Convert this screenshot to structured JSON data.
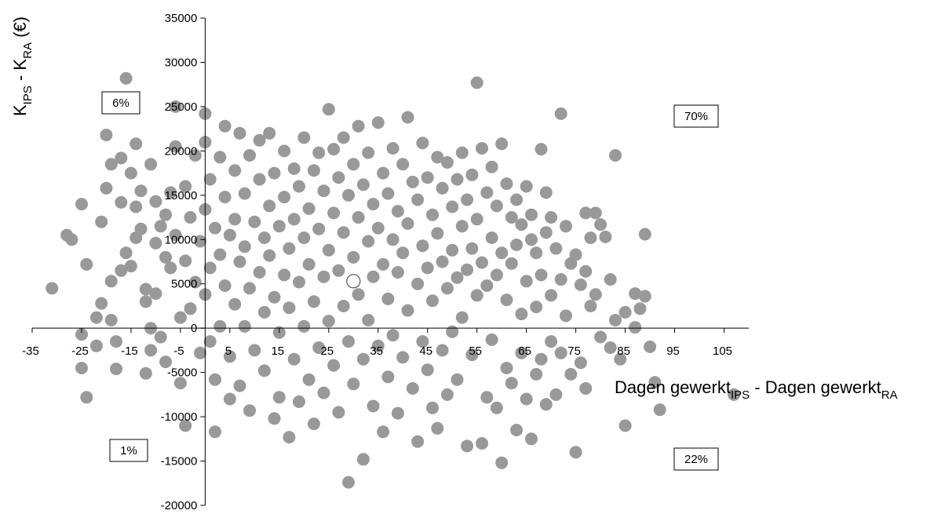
{
  "chart_data": {
    "type": "scatter",
    "title": "",
    "xlabel": {
      "base": "Dagen gewerkt",
      "sub1": "IPS",
      "mid": " - Dagen gewerkt",
      "sub2": "RA"
    },
    "ylabel": {
      "k1": "K",
      "sub1": "IPS",
      "mid": " - K",
      "sub2": "RA",
      "unit": " (€)"
    },
    "xlim": [
      -35,
      110
    ],
    "ylim": [
      -20000,
      35000
    ],
    "x_ticks": [
      -35,
      -25,
      -15,
      -5,
      5,
      15,
      25,
      35,
      45,
      55,
      65,
      75,
      85,
      95,
      105
    ],
    "y_ticks": [
      -20000,
      -15000,
      -10000,
      -5000,
      0,
      5000,
      10000,
      15000,
      20000,
      25000,
      30000,
      35000
    ],
    "quadrant_labels": [
      {
        "text": "6%",
        "quadrant": "top-left"
      },
      {
        "text": "70%",
        "quadrant": "top-right"
      },
      {
        "text": "1%",
        "quadrant": "bottom-left"
      },
      {
        "text": "22%",
        "quadrant": "bottom-right"
      }
    ],
    "point_color": "#999999",
    "mean_point": {
      "x": 30,
      "y": 5300,
      "color": "#ffffff"
    },
    "series": [
      {
        "points": [
          [
            -31,
            4500
          ],
          [
            -28,
            10500
          ],
          [
            -27,
            10000
          ],
          [
            -25,
            14000
          ],
          [
            -25,
            -700
          ],
          [
            -25,
            -4500
          ],
          [
            -24,
            7200
          ],
          [
            -24,
            -7800
          ],
          [
            -22,
            1200
          ],
          [
            -22,
            -2000
          ],
          [
            -21,
            12000
          ],
          [
            -21,
            2800
          ],
          [
            -20,
            21800
          ],
          [
            -20,
            15800
          ],
          [
            -19,
            5300
          ],
          [
            -19,
            900
          ],
          [
            -19,
            18500
          ],
          [
            -18,
            -1500
          ],
          [
            -18,
            -4600
          ],
          [
            -17,
            19200
          ],
          [
            -17,
            14200
          ],
          [
            -17,
            6500
          ],
          [
            -16,
            28200
          ],
          [
            -16,
            8500
          ],
          [
            -15,
            17500
          ],
          [
            -15,
            7000
          ],
          [
            -14,
            20800
          ],
          [
            -14,
            13700
          ],
          [
            -14,
            10200
          ],
          [
            -13,
            15500
          ],
          [
            -13,
            11200
          ],
          [
            -12,
            4400
          ],
          [
            -12,
            3000
          ],
          [
            -12,
            -5100
          ],
          [
            -11,
            0
          ],
          [
            -11,
            -2500
          ],
          [
            -11,
            18500
          ],
          [
            -10,
            14300
          ],
          [
            -10,
            9600
          ],
          [
            -10,
            3900
          ],
          [
            -9,
            11500
          ],
          [
            -9,
            -1000
          ],
          [
            -8,
            12800
          ],
          [
            -8,
            8000
          ],
          [
            -8,
            -3800
          ],
          [
            -7,
            15300
          ],
          [
            -7,
            6800
          ],
          [
            -6,
            25000
          ],
          [
            -6,
            20500
          ],
          [
            -6,
            10500
          ],
          [
            -5,
            1200
          ],
          [
            -5,
            -6200
          ],
          [
            -4,
            16000
          ],
          [
            -4,
            7600
          ],
          [
            -4,
            -11000
          ],
          [
            -3,
            12500
          ],
          [
            -3,
            2200
          ],
          [
            -2,
            19500
          ],
          [
            -2,
            5200
          ],
          [
            -1,
            9800
          ],
          [
            -1,
            -2800
          ],
          [
            0,
            24200
          ],
          [
            0,
            21000
          ],
          [
            0,
            13400
          ],
          [
            0,
            3800
          ],
          [
            1,
            16800
          ],
          [
            1,
            6800
          ],
          [
            1,
            -1500
          ],
          [
            2,
            11300
          ],
          [
            2,
            -5800
          ],
          [
            2,
            -11700
          ],
          [
            3,
            19300
          ],
          [
            3,
            8300
          ],
          [
            3,
            200
          ],
          [
            4,
            22800
          ],
          [
            4,
            14800
          ],
          [
            4,
            4800
          ],
          [
            5,
            10500
          ],
          [
            5,
            -3200
          ],
          [
            5,
            -8000
          ],
          [
            6,
            17800
          ],
          [
            6,
            12300
          ],
          [
            6,
            2700
          ],
          [
            7,
            22000
          ],
          [
            7,
            7500
          ],
          [
            7,
            -6500
          ],
          [
            8,
            15200
          ],
          [
            8,
            9200
          ],
          [
            8,
            200
          ],
          [
            9,
            19500
          ],
          [
            9,
            4500
          ],
          [
            9,
            -9300
          ],
          [
            10,
            12000
          ],
          [
            10,
            -2500
          ],
          [
            11,
            21200
          ],
          [
            11,
            16800
          ],
          [
            11,
            6300
          ],
          [
            12,
            10200
          ],
          [
            12,
            1800
          ],
          [
            12,
            -4800
          ],
          [
            13,
            22000
          ],
          [
            13,
            13800
          ],
          [
            13,
            8200
          ],
          [
            14,
            17500
          ],
          [
            14,
            3500
          ],
          [
            14,
            -10200
          ],
          [
            15,
            11500
          ],
          [
            15,
            -500
          ],
          [
            15,
            -7800
          ],
          [
            16,
            20000
          ],
          [
            16,
            14800
          ],
          [
            16,
            6000
          ],
          [
            17,
            9000
          ],
          [
            17,
            2300
          ],
          [
            17,
            -12300
          ],
          [
            18,
            18000
          ],
          [
            18,
            12300
          ],
          [
            18,
            -3500
          ],
          [
            19,
            16000
          ],
          [
            19,
            5200
          ],
          [
            19,
            -8300
          ],
          [
            20,
            21500
          ],
          [
            20,
            10200
          ],
          [
            20,
            200
          ],
          [
            21,
            13500
          ],
          [
            21,
            7200
          ],
          [
            21,
            -5800
          ],
          [
            22,
            17800
          ],
          [
            22,
            3000
          ],
          [
            22,
            -10800
          ],
          [
            23,
            19800
          ],
          [
            23,
            11200
          ],
          [
            23,
            -2200
          ],
          [
            24,
            15500
          ],
          [
            24,
            5800
          ],
          [
            24,
            -7300
          ],
          [
            25,
            24700
          ],
          [
            25,
            8800
          ],
          [
            25,
            800
          ],
          [
            26,
            20200
          ],
          [
            26,
            13000
          ],
          [
            26,
            -4200
          ],
          [
            27,
            17000
          ],
          [
            27,
            6500
          ],
          [
            27,
            -9500
          ],
          [
            28,
            21500
          ],
          [
            28,
            10800
          ],
          [
            28,
            2500
          ],
          [
            29,
            15000
          ],
          [
            29,
            -1500
          ],
          [
            29,
            -17400
          ],
          [
            30,
            18500
          ],
          [
            30,
            8000
          ],
          [
            30,
            -6300
          ],
          [
            31,
            22800
          ],
          [
            31,
            12500
          ],
          [
            31,
            3800
          ],
          [
            32,
            16200
          ],
          [
            32,
            -3500
          ],
          [
            32,
            -14800
          ],
          [
            33,
            19800
          ],
          [
            33,
            9800
          ],
          [
            33,
            900
          ],
          [
            34,
            14000
          ],
          [
            34,
            5800
          ],
          [
            34,
            -8800
          ],
          [
            35,
            23200
          ],
          [
            35,
            11300
          ],
          [
            35,
            -2000
          ],
          [
            36,
            17500
          ],
          [
            36,
            7200
          ],
          [
            36,
            -11700
          ],
          [
            37,
            15200
          ],
          [
            37,
            3300
          ],
          [
            37,
            -5500
          ],
          [
            38,
            20300
          ],
          [
            38,
            10000
          ],
          [
            38,
            -800
          ],
          [
            39,
            13200
          ],
          [
            39,
            6300
          ],
          [
            39,
            -9600
          ],
          [
            40,
            18500
          ],
          [
            40,
            8500
          ],
          [
            40,
            -3300
          ],
          [
            41,
            23800
          ],
          [
            41,
            11800
          ],
          [
            41,
            2000
          ],
          [
            42,
            16500
          ],
          [
            42,
            -6800
          ],
          [
            43,
            14500
          ],
          [
            43,
            5000
          ],
          [
            43,
            -12800
          ],
          [
            44,
            20900
          ],
          [
            44,
            9300
          ],
          [
            44,
            -1500
          ],
          [
            45,
            17000
          ],
          [
            45,
            6800
          ],
          [
            45,
            -4700
          ],
          [
            46,
            12800
          ],
          [
            46,
            3100
          ],
          [
            46,
            -9000
          ],
          [
            47,
            19300
          ],
          [
            47,
            10700
          ],
          [
            47,
            -11300
          ],
          [
            48,
            15800
          ],
          [
            48,
            7500
          ],
          [
            48,
            -2500
          ],
          [
            49,
            18700
          ],
          [
            49,
            4500
          ],
          [
            49,
            -7500
          ],
          [
            50,
            13700
          ],
          [
            50,
            8800
          ],
          [
            50,
            -400
          ],
          [
            51,
            16800
          ],
          [
            51,
            5700
          ],
          [
            51,
            -5800
          ],
          [
            52,
            19800
          ],
          [
            52,
            11500
          ],
          [
            52,
            1200
          ],
          [
            53,
            14500
          ],
          [
            53,
            6600
          ],
          [
            53,
            -13300
          ],
          [
            54,
            17300
          ],
          [
            54,
            9000
          ],
          [
            54,
            -3000
          ],
          [
            55,
            27700
          ],
          [
            55,
            12300
          ],
          [
            55,
            3700
          ],
          [
            56,
            20300
          ],
          [
            56,
            7400
          ],
          [
            56,
            -13000
          ],
          [
            57,
            15300
          ],
          [
            57,
            4800
          ],
          [
            57,
            -7800
          ],
          [
            58,
            18200
          ],
          [
            58,
            10200
          ],
          [
            58,
            -1300
          ],
          [
            59,
            13800
          ],
          [
            59,
            6000
          ],
          [
            59,
            -9000
          ],
          [
            60,
            20800
          ],
          [
            60,
            8500
          ],
          [
            60,
            -15200
          ],
          [
            61,
            16300
          ],
          [
            61,
            3200
          ],
          [
            61,
            -4500
          ],
          [
            62,
            12500
          ],
          [
            62,
            7300
          ],
          [
            62,
            -6200
          ],
          [
            63,
            14500
          ],
          [
            63,
            9400
          ],
          [
            63,
            -11500
          ],
          [
            64,
            11700
          ],
          [
            64,
            1600
          ],
          [
            64,
            -2800
          ],
          [
            65,
            16000
          ],
          [
            65,
            5300
          ],
          [
            65,
            -8000
          ],
          [
            66,
            12800
          ],
          [
            66,
            10000
          ],
          [
            66,
            -12500
          ],
          [
            67,
            8500
          ],
          [
            67,
            2400
          ],
          [
            67,
            -5200
          ],
          [
            68,
            20200
          ],
          [
            68,
            6000
          ],
          [
            68,
            -3500
          ],
          [
            69,
            15300
          ],
          [
            69,
            10800
          ],
          [
            69,
            -8600
          ],
          [
            70,
            12500
          ],
          [
            70,
            3700
          ],
          [
            70,
            -1500
          ],
          [
            71,
            9000
          ],
          [
            71,
            -7500
          ],
          [
            72,
            24200
          ],
          [
            72,
            5500
          ],
          [
            72,
            -2800
          ],
          [
            73,
            11500
          ],
          [
            73,
            1400
          ],
          [
            74,
            7300
          ],
          [
            74,
            -5200
          ],
          [
            75,
            8300
          ],
          [
            75,
            -14000
          ],
          [
            76,
            4900
          ],
          [
            76,
            -3900
          ],
          [
            77,
            13000
          ],
          [
            77,
            6400
          ],
          [
            77,
            -6800
          ],
          [
            78,
            10200
          ],
          [
            78,
            2500
          ],
          [
            79,
            13000
          ],
          [
            79,
            3800
          ],
          [
            80,
            11700
          ],
          [
            80,
            -1000
          ],
          [
            81,
            10300
          ],
          [
            82,
            5500
          ],
          [
            82,
            -2200
          ],
          [
            83,
            19500
          ],
          [
            83,
            900
          ],
          [
            84,
            -3500
          ],
          [
            85,
            1800
          ],
          [
            85,
            -11000
          ],
          [
            87,
            3900
          ],
          [
            87,
            100
          ],
          [
            88,
            2200
          ],
          [
            89,
            10600
          ],
          [
            89,
            3600
          ],
          [
            90,
            -2100
          ],
          [
            91,
            -6100
          ],
          [
            92,
            -9200
          ],
          [
            107,
            -7500
          ]
        ]
      }
    ]
  }
}
